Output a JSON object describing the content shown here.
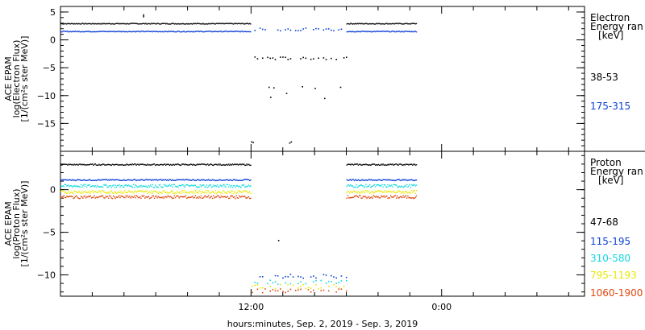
{
  "chart_data": [
    {
      "type": "scatter",
      "panel": "electron",
      "ylabel": [
        "ACE EPAM",
        "log(Electron Flux)",
        "[1/(cm²s ster MeV)]"
      ],
      "ylim": [
        -20,
        6
      ],
      "yticks": [
        5,
        0,
        -5,
        -10,
        -15
      ],
      "legend_title": [
        "Electron",
        "Energy ran",
        "[keV]"
      ],
      "series": [
        {
          "name": "38-53",
          "color": "#000000",
          "gap_value": -3.2,
          "baseline": 3.0,
          "spike": {
            "x": 5.2,
            "y": 4.6
          }
        },
        {
          "name": "175-315",
          "color": "#0b3fd6",
          "gap_value": 2.0,
          "baseline": 1.6
        }
      ],
      "extra_points": [
        {
          "x": 12.0,
          "y": -18.2
        },
        {
          "x": 12.1,
          "y": -18.3
        },
        {
          "x": 14.4,
          "y": -18.4
        },
        {
          "x": 14.5,
          "y": -18.2
        },
        {
          "x": 13.1,
          "y": -8.4
        },
        {
          "x": 13.4,
          "y": -8.5
        },
        {
          "x": 14.2,
          "y": -9.5
        },
        {
          "x": 13.2,
          "y": -10.2
        },
        {
          "x": 15.2,
          "y": -8.3
        },
        {
          "x": 16.0,
          "y": -8.6
        },
        {
          "x": 16.6,
          "y": -10.4
        },
        {
          "x": 17.6,
          "y": -8.4
        }
      ]
    },
    {
      "type": "scatter",
      "panel": "proton",
      "ylabel": [
        "ACE EPAM",
        "log(Proton Flux)",
        "[1/(cm²s ster MeV)]"
      ],
      "ylim": [
        -12.5,
        4.5
      ],
      "yticks": [
        0,
        -5,
        -10
      ],
      "legend_title": [
        "Proton",
        "Energy ran",
        "[keV]"
      ],
      "series": [
        {
          "name": "47-68",
          "color": "#000000",
          "gap_value": null,
          "baseline": 3.0
        },
        {
          "name": "115-195",
          "color": "#0b3fd6",
          "gap_value": -10.1,
          "baseline": 1.2
        },
        {
          "name": "310-580",
          "color": "#12d6e0",
          "gap_value": -10.8,
          "baseline": 0.5
        },
        {
          "name": "795-1193",
          "color": "#e8e800",
          "gap_value": -11.3,
          "baseline": -0.2
        },
        {
          "name": "1060-1900",
          "color": "#e0470d",
          "gap_value": -11.8,
          "baseline": -0.8
        }
      ],
      "extra_points": [
        {
          "x": 13.7,
          "y": -5.9
        }
      ]
    }
  ],
  "x_axis": {
    "label": "hours:minutes, Sep.  2, 2019 - Sep.  3, 2019",
    "ticks": [
      {
        "x": 12,
        "label": "12:00"
      },
      {
        "x": 24,
        "label": "0:00"
      }
    ],
    "range": [
      0,
      33
    ],
    "gap": [
      12,
      18
    ]
  },
  "colors": {
    "axis": "#000000",
    "background": "#ffffff"
  }
}
